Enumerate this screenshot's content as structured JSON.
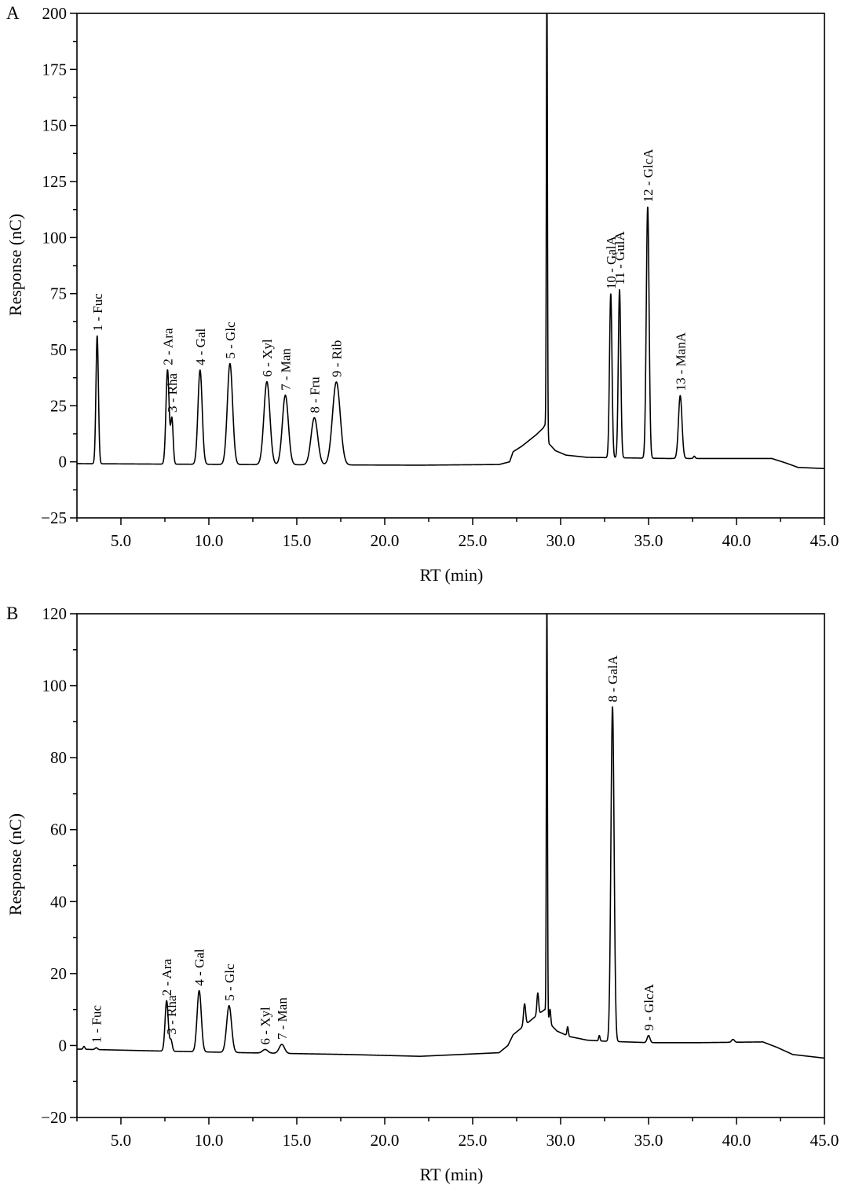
{
  "chart_data": [
    {
      "panel": "A",
      "type": "line",
      "xlabel": "RT (min)",
      "ylabel": "Response (nC)",
      "xlim": [
        2.5,
        45.0
      ],
      "ylim": [
        -25,
        200
      ],
      "x_ticks": [
        5.0,
        10.0,
        15.0,
        20.0,
        25.0,
        30.0,
        35.0,
        40.0,
        45.0
      ],
      "x_tick_labels": [
        "5.0",
        "10.0",
        "15.0",
        "20.0",
        "25.0",
        "30.0",
        "35.0",
        "40.0",
        "45.0"
      ],
      "y_ticks": [
        -25,
        0,
        25,
        50,
        75,
        100,
        125,
        150,
        175,
        200
      ],
      "y_tick_labels": [
        "−25",
        "0",
        "25",
        "50",
        "75",
        "100",
        "125",
        "150",
        "175",
        "200"
      ],
      "grid": false,
      "baseline": [
        [
          2.5,
          -0.8
        ],
        [
          7.0,
          -1.0
        ],
        [
          12.0,
          -1.2
        ],
        [
          18.0,
          -1.4
        ],
        [
          22.0,
          -1.5
        ],
        [
          26.5,
          -1.2
        ],
        [
          27.1,
          0.0
        ],
        [
          27.3,
          4.5
        ],
        [
          27.8,
          7.0
        ],
        [
          28.2,
          9.5
        ],
        [
          28.6,
          12.0
        ],
        [
          29.0,
          15.0
        ],
        [
          29.15,
          17.0
        ],
        [
          29.35,
          8.0
        ],
        [
          29.7,
          5.0
        ],
        [
          30.3,
          3.0
        ],
        [
          31.5,
          2.0
        ],
        [
          36.0,
          1.5
        ],
        [
          38.0,
          1.5
        ],
        [
          42.0,
          1.5
        ],
        [
          42.8,
          -0.5
        ],
        [
          43.5,
          -2.5
        ],
        [
          45.0,
          -3.0
        ]
      ],
      "peaks": [
        {
          "label": "1 - Fuc",
          "rt": 3.65,
          "height": 57,
          "width": 0.07
        },
        {
          "label": "2 - Ara",
          "rt": 7.65,
          "height": 42,
          "width": 0.09
        },
        {
          "label": "3 - Rha",
          "rt": 7.9,
          "height": 20,
          "width": 0.07
        },
        {
          "label": "4 - Gal",
          "rt": 9.5,
          "height": 42,
          "width": 0.12
        },
        {
          "label": "5 - Glc",
          "rt": 11.2,
          "height": 45,
          "width": 0.15
        },
        {
          "label": "6 - Xyl",
          "rt": 13.3,
          "height": 37,
          "width": 0.17
        },
        {
          "label": "7 - Man",
          "rt": 14.35,
          "height": 31,
          "width": 0.17
        },
        {
          "label": "8 - Fru",
          "rt": 16.0,
          "height": 21,
          "width": 0.19
        },
        {
          "label": "9 - Rib",
          "rt": 17.25,
          "height": 37,
          "width": 0.22
        },
        {
          "label": "10 - GalA",
          "rt": 32.85,
          "height": 73,
          "width": 0.07
        },
        {
          "label": "11 - GulA",
          "rt": 33.35,
          "height": 75,
          "width": 0.07
        },
        {
          "label": "12 - GlcA",
          "rt": 34.95,
          "height": 112,
          "width": 0.08
        },
        {
          "label": "13 - ManA",
          "rt": 36.8,
          "height": 28,
          "width": 0.1
        }
      ],
      "unlabeled_peaks": [
        {
          "rt": 29.22,
          "height": 200,
          "width": 0.03
        },
        {
          "rt": 37.6,
          "height": 1.0,
          "width": 0.05
        }
      ]
    },
    {
      "panel": "B",
      "type": "line",
      "xlabel": "RT (min)",
      "ylabel": "Response (nC)",
      "xlim": [
        2.5,
        45.0
      ],
      "ylim": [
        -20,
        120
      ],
      "x_ticks": [
        5.0,
        10.0,
        15.0,
        20.0,
        25.0,
        30.0,
        35.0,
        40.0,
        45.0
      ],
      "x_tick_labels": [
        "5.0",
        "10.0",
        "15.0",
        "20.0",
        "25.0",
        "30.0",
        "35.0",
        "40.0",
        "45.0"
      ],
      "y_ticks": [
        -20,
        0,
        20,
        40,
        60,
        80,
        100,
        120
      ],
      "y_tick_labels": [
        "−20",
        "0",
        "20",
        "40",
        "60",
        "80",
        "100",
        "120"
      ],
      "grid": false,
      "baseline": [
        [
          2.5,
          -1.0
        ],
        [
          7.0,
          -1.5
        ],
        [
          12.0,
          -2.0
        ],
        [
          18.0,
          -2.5
        ],
        [
          22.0,
          -3.0
        ],
        [
          26.5,
          -2.0
        ],
        [
          27.0,
          0.0
        ],
        [
          27.3,
          3.0
        ],
        [
          27.8,
          5.0
        ],
        [
          28.3,
          7.0
        ],
        [
          28.8,
          9.0
        ],
        [
          29.1,
          10.0
        ],
        [
          29.4,
          6.0
        ],
        [
          29.8,
          4.0
        ],
        [
          30.5,
          2.5
        ],
        [
          31.5,
          1.5
        ],
        [
          32.5,
          1.2
        ],
        [
          35.0,
          0.8
        ],
        [
          38.0,
          0.8
        ],
        [
          41.5,
          1.0
        ],
        [
          42.3,
          -0.5
        ],
        [
          43.2,
          -2.5
        ],
        [
          45.0,
          -3.5
        ]
      ],
      "peaks": [
        {
          "label": "1 - Fuc",
          "rt": 3.6,
          "height": 0.5,
          "width": 0.07
        },
        {
          "label": "2 - Ara",
          "rt": 7.6,
          "height": 14,
          "width": 0.09
        },
        {
          "label": "3 - Rha",
          "rt": 7.85,
          "height": 3,
          "width": 0.07
        },
        {
          "label": "4 - Gal",
          "rt": 9.45,
          "height": 17,
          "width": 0.12
        },
        {
          "label": "5 - Glc",
          "rt": 11.15,
          "height": 13,
          "width": 0.14
        },
        {
          "label": "6 - Xyl",
          "rt": 13.2,
          "height": 1.0,
          "width": 0.15
        },
        {
          "label": "7 - Man",
          "rt": 14.15,
          "height": 2.5,
          "width": 0.15
        },
        {
          "label": "8 - GalA",
          "rt": 32.95,
          "height": 93,
          "width": 0.09
        },
        {
          "label": "9 - GlcA",
          "rt": 35.0,
          "height": 2.0,
          "width": 0.08
        }
      ],
      "unlabeled_peaks": [
        {
          "rt": 2.9,
          "height": 0.8,
          "width": 0.05
        },
        {
          "rt": 27.95,
          "height": 6.0,
          "width": 0.06
        },
        {
          "rt": 28.7,
          "height": 6.0,
          "width": 0.05
        },
        {
          "rt": 29.22,
          "height": 115,
          "width": 0.03
        },
        {
          "rt": 29.4,
          "height": 4.0,
          "width": 0.04
        },
        {
          "rt": 30.4,
          "height": 2.5,
          "width": 0.04
        },
        {
          "rt": 32.2,
          "height": 1.5,
          "width": 0.04
        },
        {
          "rt": 39.8,
          "height": 0.8,
          "width": 0.08
        }
      ]
    }
  ]
}
